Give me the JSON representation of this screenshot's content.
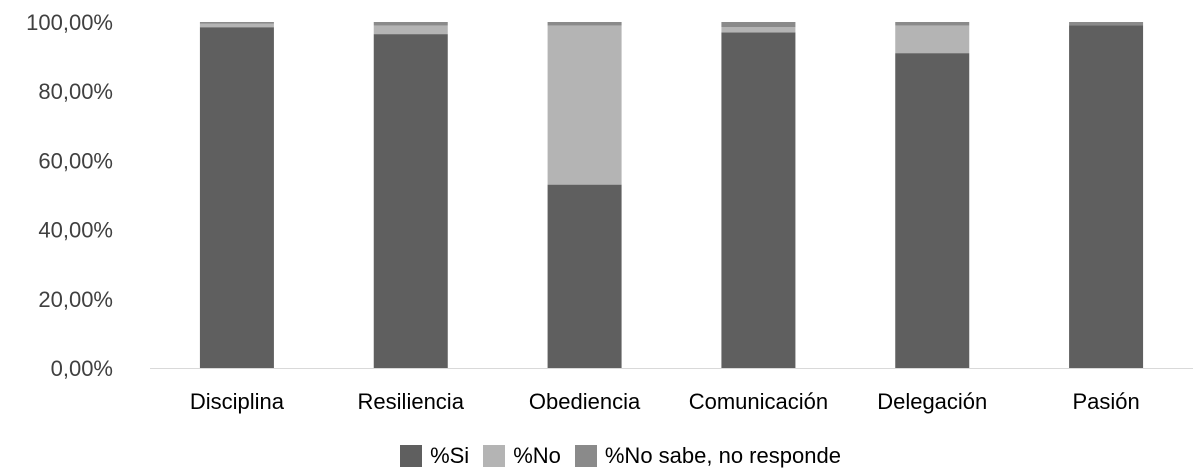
{
  "chart_data": {
    "type": "bar",
    "stacked": true,
    "categories": [
      "Disciplina",
      "Resiliencia",
      "Obediencia",
      "Comunicación",
      "Delegación",
      "Pasión"
    ],
    "series": [
      {
        "name": "%Si",
        "color": "#5f5f5f",
        "values": [
          98.5,
          96.5,
          53.0,
          97.0,
          91.0,
          99.0
        ]
      },
      {
        "name": "%No",
        "color": "#b4b4b4",
        "values": [
          1.0,
          2.5,
          46.0,
          1.5,
          8.0,
          0.0
        ]
      },
      {
        "name": "%No sabe, no responde",
        "color": "#8a8a8a",
        "values": [
          0.5,
          1.0,
          1.0,
          1.5,
          1.0,
          1.0
        ]
      }
    ],
    "yticks": [
      "0,00%",
      "20,00%",
      "40,00%",
      "60,00%",
      "80,00%",
      "100,00%"
    ],
    "ylim": [
      0,
      100
    ],
    "grid": false,
    "legend_position": "bottom"
  }
}
